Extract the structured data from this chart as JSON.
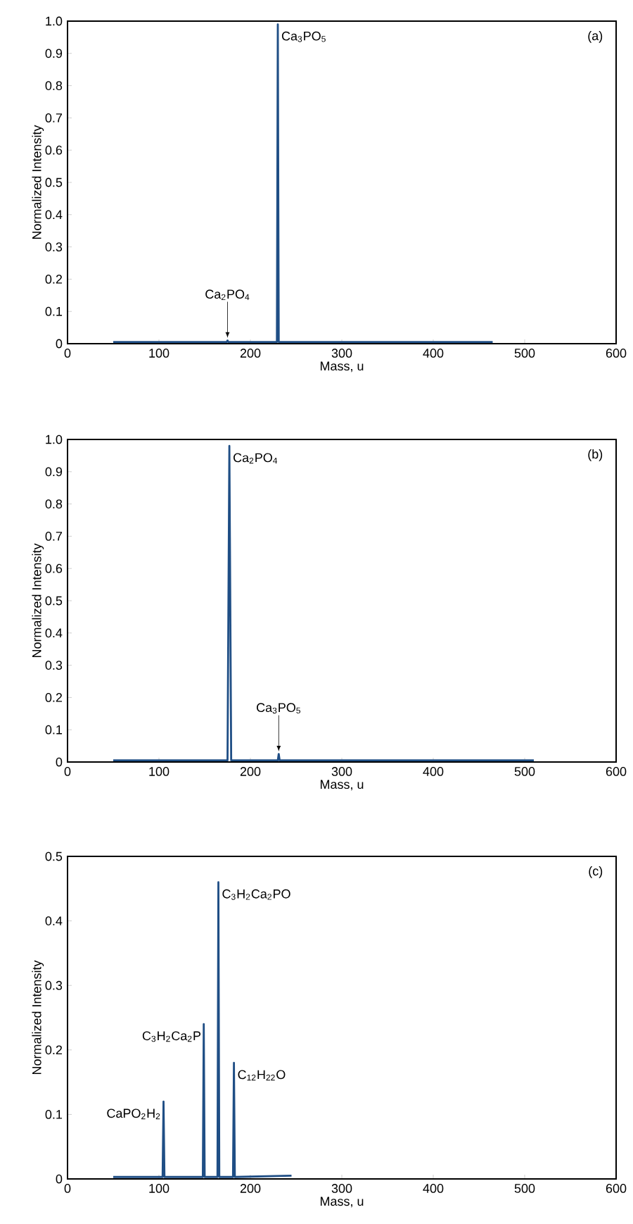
{
  "chart_data": [
    {
      "type": "line",
      "xlabel": "Mass, u",
      "ylabel": "Normalized Intensity",
      "color": "#1f4e85",
      "x": [
        50,
        174,
        175,
        176,
        229,
        230,
        231,
        465
      ],
      "values": [
        0.005,
        0.005,
        0.01,
        0.005,
        0.005,
        0.99,
        0.005,
        0.005
      ],
      "xlim": [
        0,
        600
      ],
      "xticks": [
        0,
        100,
        200,
        300,
        400,
        500,
        600
      ],
      "ylim": [
        0,
        1
      ],
      "yticks": [
        0,
        0.1,
        0.2,
        0.3,
        0.4,
        0.5,
        0.6,
        0.7,
        0.8,
        0.9,
        {
          "value": 1,
          "label": "1.0"
        }
      ],
      "annotations": [
        "(a)",
        {
          "text": "Ca$_{3}$PO$_{5}$",
          "x": 230,
          "y": 0.99
        },
        {
          "text": "Ca$_{2}$PO$_{4}$",
          "x": 175,
          "y": 0.01
        }
      ]
    },
    {
      "type": "line",
      "xlabel": "Mass, u",
      "ylabel": "Normalized Intensity",
      "color": "#1f4e85",
      "x": [
        50,
        175,
        177,
        179,
        230,
        231,
        232,
        510
      ],
      "values": [
        0.005,
        0.005,
        0.98,
        0.005,
        0.005,
        0.025,
        0.005,
        0.005
      ],
      "xlim": [
        0,
        600
      ],
      "xticks": [
        0,
        100,
        200,
        300,
        400,
        500,
        600
      ],
      "ylim": [
        0,
        1
      ],
      "yticks": [
        0,
        0.1,
        0.2,
        0.3,
        0.4,
        0.5,
        0.6,
        0.7,
        0.8,
        0.9,
        {
          "value": 1,
          "label": "1.0"
        }
      ],
      "annotations": [
        "(b)",
        {
          "text": "Ca$_{2}$PO$_{4}$",
          "x": 177,
          "y": 0.98
        },
        {
          "text": "Ca$_{3}$PO$_{5}$",
          "x": 231,
          "y": 0.025
        }
      ]
    },
    {
      "type": "line",
      "xlabel": "Mass, u",
      "ylabel": "Normalized Intensity",
      "color": "#1f4e85",
      "x": [
        50,
        104,
        105,
        106,
        148,
        149,
        150,
        164,
        165,
        166,
        181,
        182,
        183,
        245
      ],
      "values": [
        0.003,
        0.003,
        0.12,
        0.003,
        0.003,
        0.24,
        0.003,
        0.003,
        0.46,
        0.003,
        0.003,
        0.18,
        0.003,
        0.005
      ],
      "xlim": [
        0,
        600
      ],
      "xticks": [
        0,
        100,
        200,
        300,
        400,
        500,
        600
      ],
      "ylim": [
        0,
        0.5
      ],
      "yticks": [
        0,
        0.1,
        0.2,
        0.3,
        0.4,
        0.5
      ],
      "annotations": [
        "(c)",
        {
          "text": "CaPO$_{2}$H$_{2}$",
          "x": 105,
          "y": 0.12
        },
        {
          "text": "C$_{3}$H$_{2}$Ca$_{2}$P",
          "x": 149,
          "y": 0.24
        },
        {
          "text": "C$_{3}$H$_{2}$Ca$_{2}$PO",
          "x": 165,
          "y": 0.46
        },
        {
          "text": "C$_{12}$H$_{22}$O",
          "x": 182,
          "y": 0.18
        }
      ]
    }
  ]
}
